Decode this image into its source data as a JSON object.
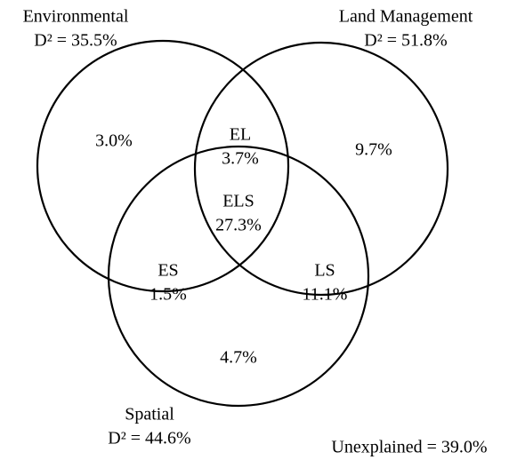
{
  "sets": [
    {
      "name": "Environmental",
      "d2": "D² = 35.5%"
    },
    {
      "name": "Land Management",
      "d2": "D² = 51.8%"
    },
    {
      "name": "Spatial",
      "d2": "D² = 44.6%"
    }
  ],
  "regions": [
    {
      "value": "3.0%"
    },
    {
      "label": "EL",
      "value": "3.7%"
    },
    {
      "value": "9.7%"
    },
    {
      "label": "ELS",
      "value": "27.3%"
    },
    {
      "label": "ES",
      "value": "1.5%"
    },
    {
      "label": "LS",
      "value": "11.1%"
    },
    {
      "value": "4.7%"
    }
  ],
  "unexplained": "Unexplained = 39.0%"
}
